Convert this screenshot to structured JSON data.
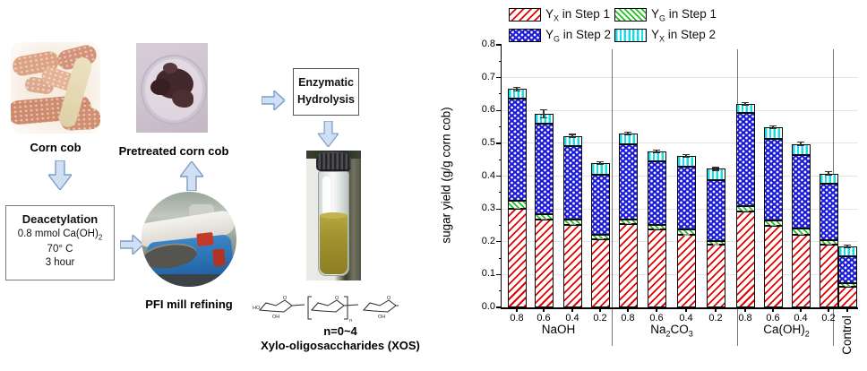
{
  "flow": {
    "corn_cob_label": "Corn cob",
    "pretreated_label": "Pretreated corn cob",
    "pfi_label": "PFI mill refining",
    "deacetylation": {
      "title": "Deacetylation",
      "line1": "0.8 mmol Ca(OH)",
      "line1_sub": "2",
      "line2": "70° C",
      "line3": "3 hour"
    },
    "enzymatic": {
      "line1": "Enzymatic",
      "line2": "Hydrolysis"
    },
    "n_label": "n=0~4",
    "xos_label": "Xylo-oligosaccharides (XOS)",
    "xos_atoms": {
      "ho": "HO",
      "oh": "OH",
      "o": "O",
      "n": "n"
    }
  },
  "colors": {
    "yx1_red": "#e60000",
    "yg1_green": "#1fc01f",
    "yg2_blue": "#1a1ad8",
    "yx2_cyan": "#19dbe8",
    "arrow_fill": "#cfe0f4",
    "arrow_border": "#7d9cc4"
  },
  "chart_data": {
    "type": "bar",
    "stacked": true,
    "ylabel": "sugar yield (g/g corn cob)",
    "ylim": [
      0.0,
      0.8
    ],
    "ytick_step": 0.1,
    "grid": "horizontal-light",
    "legend_position": "top",
    "y_tick_labels": [
      "0.0",
      "0.1",
      "0.2",
      "0.3",
      "0.4",
      "0.5",
      "0.6",
      "0.7",
      "0.8"
    ],
    "legend": [
      {
        "key": "yx1",
        "main": "Y",
        "sub": "X",
        "rest": " in Step 1"
      },
      {
        "key": "yg1",
        "main": "Y",
        "sub": "G",
        "rest": " in Step 1"
      },
      {
        "key": "yg2",
        "main": "Y",
        "sub": "G",
        "rest": " in Step 2"
      },
      {
        "key": "yx2",
        "main": "Y",
        "sub": "X",
        "rest": " in Step 2"
      }
    ],
    "group_labels": [
      {
        "t0": "NaOH"
      },
      {
        "t0": "Na",
        "s0": "2",
        "t1": "CO",
        "s1": "3"
      },
      {
        "t0": "Ca(OH)",
        "s0": "2"
      }
    ],
    "control_label": "Control",
    "series_order": [
      "yx1",
      "yg1",
      "yg2",
      "yx2"
    ],
    "bars": [
      {
        "group": "NaOH",
        "conc": "0.8",
        "yx1": 0.3,
        "yg1": 0.025,
        "yg2": 0.31,
        "yx2": 0.03,
        "err": 0.005
      },
      {
        "group": "NaOH",
        "conc": "0.6",
        "yx1": 0.268,
        "yg1": 0.017,
        "yg2": 0.275,
        "yx2": 0.03,
        "err": 0.012
      },
      {
        "group": "NaOH",
        "conc": "0.4",
        "yx1": 0.252,
        "yg1": 0.015,
        "yg2": 0.225,
        "yx2": 0.03,
        "err": 0.005
      },
      {
        "group": "NaOH",
        "conc": "0.2",
        "yx1": 0.207,
        "yg1": 0.013,
        "yg2": 0.185,
        "yx2": 0.035,
        "err": 0.004
      },
      {
        "group": "Na2CO3",
        "conc": "0.8",
        "yx1": 0.253,
        "yg1": 0.015,
        "yg2": 0.228,
        "yx2": 0.034,
        "err": 0.005
      },
      {
        "group": "Na2CO3",
        "conc": "0.6",
        "yx1": 0.237,
        "yg1": 0.015,
        "yg2": 0.193,
        "yx2": 0.031,
        "err": 0.004
      },
      {
        "group": "Na2CO3",
        "conc": "0.4",
        "yx1": 0.22,
        "yg1": 0.017,
        "yg2": 0.193,
        "yx2": 0.032,
        "err": 0.004
      },
      {
        "group": "Na2CO3",
        "conc": "0.2",
        "yx1": 0.19,
        "yg1": 0.013,
        "yg2": 0.185,
        "yx2": 0.034,
        "err": 0.004
      },
      {
        "group": "Ca(OH)2",
        "conc": "0.8",
        "yx1": 0.292,
        "yg1": 0.016,
        "yg2": 0.285,
        "yx2": 0.028,
        "err": 0.004
      },
      {
        "group": "Ca(OH)2",
        "conc": "0.6",
        "yx1": 0.248,
        "yg1": 0.018,
        "yg2": 0.248,
        "yx2": 0.036,
        "err": 0.004
      },
      {
        "group": "Ca(OH)2",
        "conc": "0.4",
        "yx1": 0.222,
        "yg1": 0.018,
        "yg2": 0.225,
        "yx2": 0.033,
        "err": 0.005
      },
      {
        "group": "Ca(OH)2",
        "conc": "0.2",
        "yx1": 0.192,
        "yg1": 0.014,
        "yg2": 0.172,
        "yx2": 0.03,
        "err": 0.006
      },
      {
        "group": "Control",
        "conc": null,
        "yx1": 0.063,
        "yg1": 0.012,
        "yg2": 0.08,
        "yx2": 0.03,
        "err": 0.004
      }
    ]
  }
}
